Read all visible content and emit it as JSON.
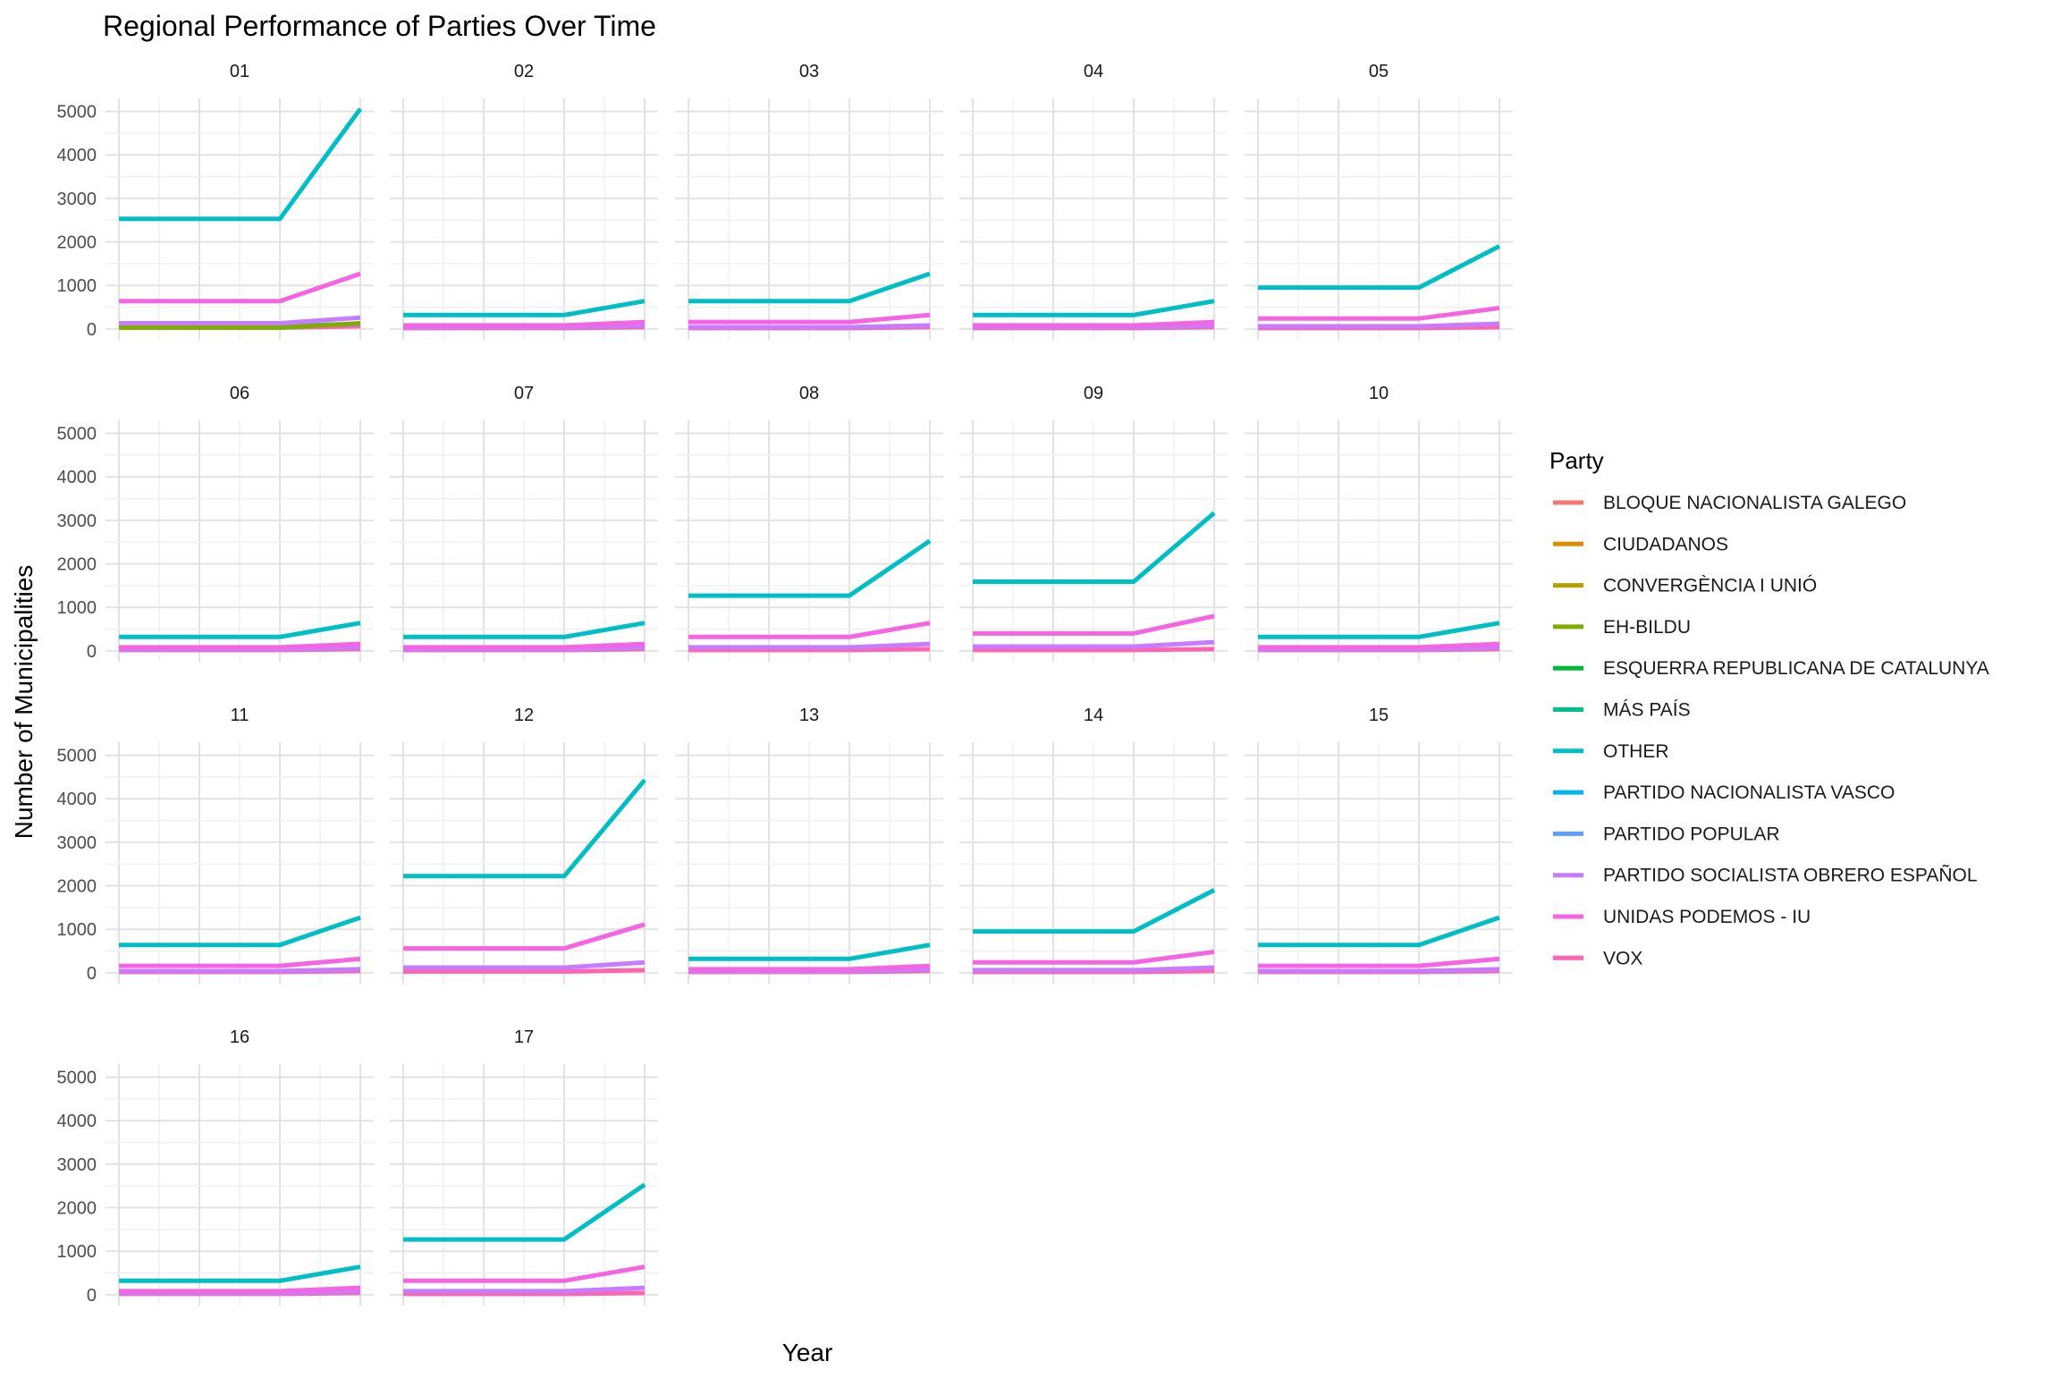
{
  "chart_data": {
    "type": "line",
    "title": "Regional Performance of Parties Over Time",
    "xlabel": "Year",
    "ylabel": "Number of Municipalities",
    "ylim": [
      0,
      5000
    ],
    "yticks": [
      0,
      1000,
      2000,
      3000,
      4000,
      5000
    ],
    "grid": true,
    "legend": {
      "title": "Party",
      "placement": "right",
      "entries": [
        {
          "name": "BLOQUE NACIONALISTA GALEGO",
          "color": "#F8766D"
        },
        {
          "name": "CIUDADANOS",
          "color": "#DE8C00"
        },
        {
          "name": "CONVERGÈNCIA I UNIÓ",
          "color": "#B79F00"
        },
        {
          "name": "EH-BILDU",
          "color": "#7CAE00"
        },
        {
          "name": "ESQUERRA REPUBLICANA DE CATALUNYA",
          "color": "#00BA38"
        },
        {
          "name": "MÁS PAÍS",
          "color": "#00C08B"
        },
        {
          "name": "OTHER",
          "color": "#00BFC4"
        },
        {
          "name": "PARTIDO NACIONALISTA VASCO",
          "color": "#00B4F0"
        },
        {
          "name": "PARTIDO POPULAR",
          "color": "#619CFF"
        },
        {
          "name": "PARTIDO SOCIALISTA OBRERO ESPAÑOL",
          "color": "#C77CFF"
        },
        {
          "name": "UNIDAS PODEMOS - IU",
          "color": "#F564E3"
        },
        {
          "name": "VOX",
          "color": "#FF64B0"
        }
      ]
    },
    "x_points": 4,
    "panels": [
      {
        "label": "01",
        "series": {
          "OTHER": [
            2530,
            2530,
            2530,
            5060
          ],
          "UNIDAS PODEMOS - IU": [
            640,
            640,
            640,
            1270
          ],
          "PARTIDO SOCIALISTA OBRERO ESPAÑOL": [
            130,
            130,
            130,
            260
          ],
          "PARTIDO POPULAR": [
            60,
            60,
            60,
            120
          ],
          "EH-BILDU": [
            30,
            30,
            30,
            130
          ],
          "VOX": [
            30,
            30,
            30,
            60
          ]
        }
      },
      {
        "label": "02",
        "series": {
          "OTHER": [
            320,
            320,
            320,
            640
          ],
          "UNIDAS PODEMOS - IU": [
            80,
            80,
            80,
            160
          ],
          "PARTIDO SOCIALISTA OBRERO ESPAÑOL": [
            40,
            40,
            40,
            80
          ],
          "VOX": [
            20,
            20,
            20,
            40
          ]
        }
      },
      {
        "label": "03",
        "series": {
          "OTHER": [
            640,
            640,
            640,
            1270
          ],
          "UNIDAS PODEMOS - IU": [
            160,
            160,
            160,
            320
          ],
          "PARTIDO SOCIALISTA OBRERO ESPAÑOL": [
            40,
            40,
            40,
            80
          ],
          "VOX": [
            20,
            20,
            20,
            40
          ]
        }
      },
      {
        "label": "04",
        "series": {
          "OTHER": [
            320,
            320,
            320,
            640
          ],
          "UNIDAS PODEMOS - IU": [
            80,
            80,
            80,
            160
          ],
          "PARTIDO SOCIALISTA OBRERO ESPAÑOL": [
            40,
            40,
            40,
            80
          ],
          "VOX": [
            20,
            20,
            20,
            40
          ]
        }
      },
      {
        "label": "05",
        "series": {
          "OTHER": [
            950,
            950,
            950,
            1900
          ],
          "UNIDAS PODEMOS - IU": [
            240,
            240,
            240,
            480
          ],
          "PARTIDO SOCIALISTA OBRERO ESPAÑOL": [
            60,
            60,
            60,
            120
          ],
          "VOX": [
            20,
            20,
            20,
            40
          ]
        }
      },
      {
        "label": "06",
        "series": {
          "OTHER": [
            320,
            320,
            320,
            640
          ],
          "UNIDAS PODEMOS - IU": [
            80,
            80,
            80,
            160
          ],
          "PARTIDO SOCIALISTA OBRERO ESPAÑOL": [
            40,
            40,
            40,
            80
          ],
          "VOX": [
            20,
            20,
            20,
            40
          ]
        }
      },
      {
        "label": "07",
        "series": {
          "OTHER": [
            320,
            320,
            320,
            640
          ],
          "UNIDAS PODEMOS - IU": [
            80,
            80,
            80,
            160
          ],
          "PARTIDO SOCIALISTA OBRERO ESPAÑOL": [
            40,
            40,
            40,
            80
          ],
          "VOX": [
            20,
            20,
            20,
            40
          ]
        }
      },
      {
        "label": "08",
        "series": {
          "OTHER": [
            1270,
            1270,
            1270,
            2530
          ],
          "UNIDAS PODEMOS - IU": [
            320,
            320,
            320,
            640
          ],
          "PARTIDO SOCIALISTA OBRERO ESPAÑOL": [
            80,
            80,
            80,
            160
          ],
          "VOX": [
            20,
            20,
            20,
            40
          ]
        }
      },
      {
        "label": "09",
        "series": {
          "OTHER": [
            1590,
            1590,
            1590,
            3170
          ],
          "UNIDAS PODEMOS - IU": [
            400,
            400,
            400,
            800
          ],
          "PARTIDO SOCIALISTA OBRERO ESPAÑOL": [
            100,
            100,
            100,
            200
          ],
          "VOX": [
            20,
            20,
            20,
            40
          ]
        }
      },
      {
        "label": "10",
        "series": {
          "OTHER": [
            320,
            320,
            320,
            640
          ],
          "UNIDAS PODEMOS - IU": [
            80,
            80,
            80,
            160
          ],
          "PARTIDO SOCIALISTA OBRERO ESPAÑOL": [
            40,
            40,
            40,
            80
          ],
          "VOX": [
            20,
            20,
            20,
            40
          ]
        }
      },
      {
        "label": "11",
        "series": {
          "OTHER": [
            640,
            640,
            640,
            1270
          ],
          "UNIDAS PODEMOS - IU": [
            160,
            160,
            160,
            320
          ],
          "PARTIDO SOCIALISTA OBRERO ESPAÑOL": [
            40,
            40,
            40,
            80
          ],
          "VOX": [
            20,
            20,
            20,
            40
          ]
        }
      },
      {
        "label": "12",
        "series": {
          "OTHER": [
            2220,
            2220,
            2220,
            4430
          ],
          "UNIDAS PODEMOS - IU": [
            560,
            560,
            560,
            1110
          ],
          "PARTIDO SOCIALISTA OBRERO ESPAÑOL": [
            120,
            120,
            120,
            240
          ],
          "VOX": [
            30,
            30,
            30,
            60
          ]
        }
      },
      {
        "label": "13",
        "series": {
          "OTHER": [
            320,
            320,
            320,
            640
          ],
          "UNIDAS PODEMOS - IU": [
            80,
            80,
            80,
            160
          ],
          "PARTIDO SOCIALISTA OBRERO ESPAÑOL": [
            40,
            40,
            40,
            80
          ],
          "VOX": [
            20,
            20,
            20,
            40
          ]
        }
      },
      {
        "label": "14",
        "series": {
          "OTHER": [
            950,
            950,
            950,
            1900
          ],
          "UNIDAS PODEMOS - IU": [
            240,
            240,
            240,
            480
          ],
          "PARTIDO SOCIALISTA OBRERO ESPAÑOL": [
            60,
            60,
            60,
            120
          ],
          "VOX": [
            20,
            20,
            20,
            40
          ]
        }
      },
      {
        "label": "15",
        "series": {
          "OTHER": [
            640,
            640,
            640,
            1270
          ],
          "UNIDAS PODEMOS - IU": [
            160,
            160,
            160,
            320
          ],
          "PARTIDO SOCIALISTA OBRERO ESPAÑOL": [
            40,
            40,
            40,
            80
          ],
          "VOX": [
            20,
            20,
            20,
            40
          ]
        }
      },
      {
        "label": "16",
        "series": {
          "OTHER": [
            320,
            320,
            320,
            640
          ],
          "UNIDAS PODEMOS - IU": [
            80,
            80,
            80,
            160
          ],
          "PARTIDO SOCIALISTA OBRERO ESPAÑOL": [
            40,
            40,
            40,
            80
          ],
          "VOX": [
            20,
            20,
            20,
            40
          ]
        }
      },
      {
        "label": "17",
        "series": {
          "OTHER": [
            1270,
            1270,
            1270,
            2530
          ],
          "UNIDAS PODEMOS - IU": [
            320,
            320,
            320,
            640
          ],
          "PARTIDO SOCIALISTA OBRERO ESPAÑOL": [
            80,
            80,
            80,
            160
          ],
          "VOX": [
            20,
            20,
            20,
            40
          ]
        }
      }
    ]
  }
}
